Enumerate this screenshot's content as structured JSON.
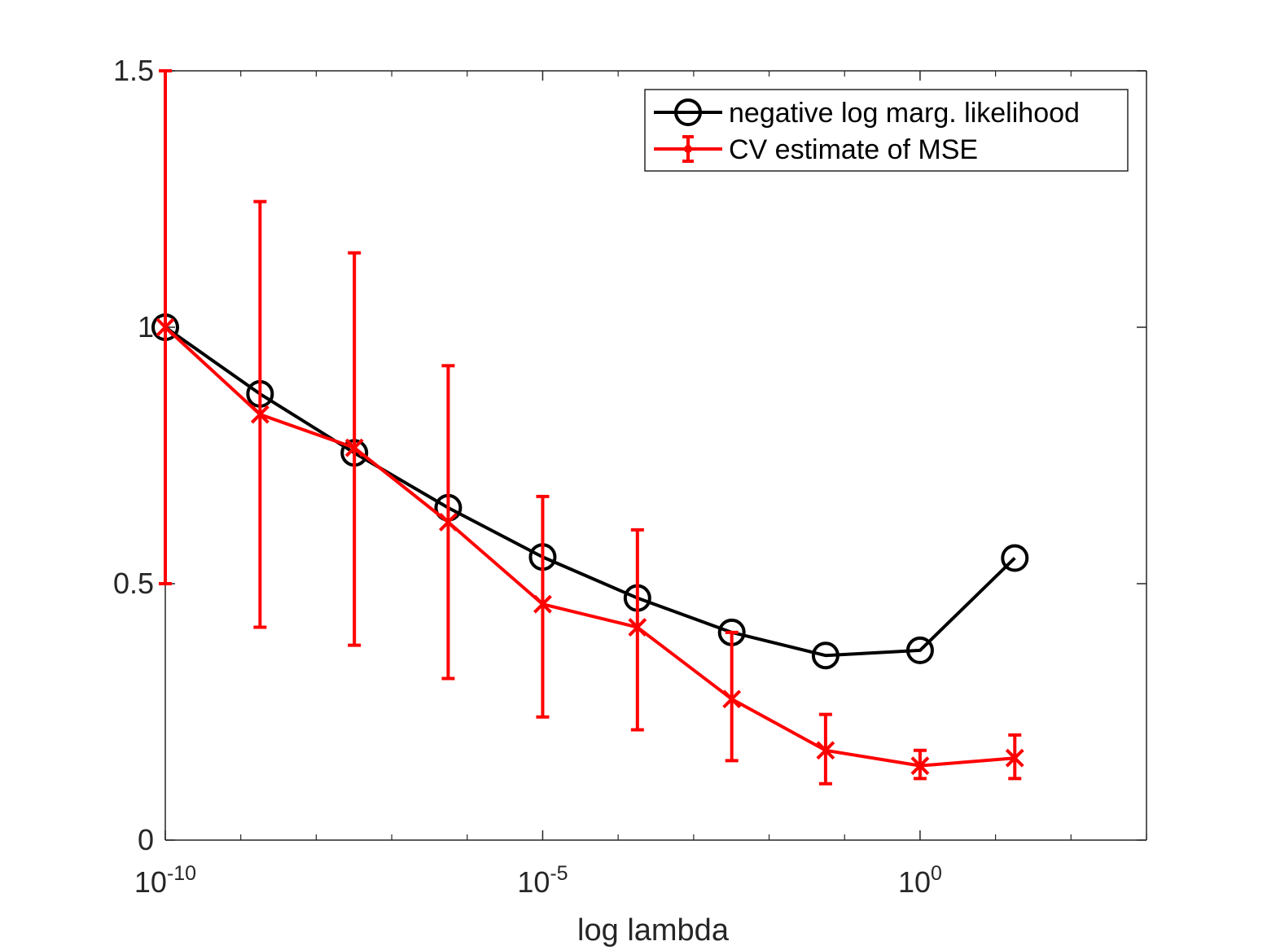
{
  "chart_data": {
    "type": "line",
    "title": "",
    "xlabel": "log lambda",
    "ylabel": "",
    "xscale": "log",
    "xlim": [
      1e-10,
      1000
    ],
    "ylim": [
      0,
      1.5
    ],
    "grid": false,
    "legend_position": "top-right",
    "x_ticks": [
      {
        "value": 1e-10,
        "base": "10",
        "exp": "-10"
      },
      {
        "value": 1e-05,
        "base": "10",
        "exp": "-5"
      },
      {
        "value": 1,
        "base": "10",
        "exp": "0"
      }
    ],
    "y_ticks": [
      {
        "value": 0,
        "label": "0"
      },
      {
        "value": 0.5,
        "label": "0.5"
      },
      {
        "value": 1,
        "label": "1"
      },
      {
        "value": 1.5,
        "label": "1.5"
      }
    ],
    "x": [
      1e-10,
      1.8e-09,
      3.2e-08,
      5.6e-07,
      1e-05,
      0.00018,
      0.0032,
      0.056,
      1,
      18
    ],
    "series": [
      {
        "name": "negative log marg. likelihood",
        "color": "#000000",
        "marker": "circle",
        "values": [
          1.0,
          0.87,
          0.755,
          0.648,
          0.552,
          0.472,
          0.405,
          0.36,
          0.37,
          0.55
        ]
      },
      {
        "name": "CV estimate of MSE",
        "color": "#ff0000",
        "marker": "x",
        "values": [
          1.0,
          0.83,
          0.765,
          0.62,
          0.46,
          0.415,
          0.275,
          0.175,
          0.145,
          0.16
        ],
        "error_lower": [
          0.5,
          0.415,
          0.38,
          0.315,
          0.24,
          0.215,
          0.155,
          0.11,
          0.12,
          0.12
        ],
        "error_upper": [
          1.5,
          1.245,
          1.145,
          0.925,
          0.67,
          0.605,
          0.405,
          0.245,
          0.175,
          0.205
        ]
      }
    ]
  }
}
